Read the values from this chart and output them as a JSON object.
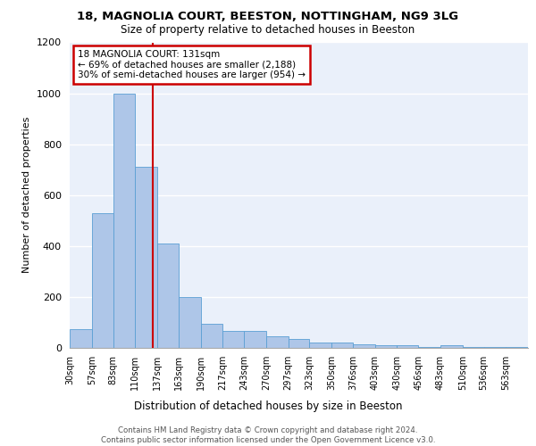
{
  "title1": "18, MAGNOLIA COURT, BEESTON, NOTTINGHAM, NG9 3LG",
  "title2": "Size of property relative to detached houses in Beeston",
  "xlabel": "Distribution of detached houses by size in Beeston",
  "ylabel": "Number of detached properties",
  "footer": "Contains HM Land Registry data © Crown copyright and database right 2024.\nContains public sector information licensed under the Open Government Licence v3.0.",
  "bin_labels": [
    "30sqm",
    "57sqm",
    "83sqm",
    "110sqm",
    "137sqm",
    "163sqm",
    "190sqm",
    "217sqm",
    "243sqm",
    "270sqm",
    "297sqm",
    "323sqm",
    "350sqm",
    "376sqm",
    "403sqm",
    "430sqm",
    "456sqm",
    "483sqm",
    "510sqm",
    "536sqm",
    "563sqm"
  ],
  "bin_edges": [
    30,
    57,
    83,
    110,
    137,
    163,
    190,
    217,
    243,
    270,
    297,
    323,
    350,
    376,
    403,
    430,
    456,
    483,
    510,
    536,
    563,
    590
  ],
  "bar_heights": [
    75,
    530,
    1000,
    710,
    410,
    200,
    95,
    65,
    65,
    45,
    35,
    20,
    20,
    15,
    10,
    10,
    5,
    10,
    5,
    5,
    2
  ],
  "bar_color": "#aec6e8",
  "bar_edge_color": "#5a9fd4",
  "bg_color": "#eaf0fa",
  "grid_color": "#ffffff",
  "property_size": 131,
  "annotation_text": "18 MAGNOLIA COURT: 131sqm\n← 69% of detached houses are smaller (2,188)\n30% of semi-detached houses are larger (954) →",
  "annotation_box_color": "#ffffff",
  "annotation_box_edge": "#cc0000",
  "ylim": [
    0,
    1200
  ],
  "yticks": [
    0,
    200,
    400,
    600,
    800,
    1000,
    1200
  ],
  "title1_fontsize": 9.5,
  "title2_fontsize": 8.5
}
